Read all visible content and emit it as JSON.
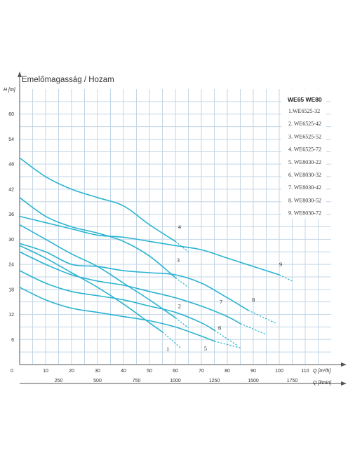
{
  "chart_data": {
    "type": "line",
    "title": "Emelőmagasság / Hozam",
    "ylabel": "H [m]",
    "xlabel": "Q [m³/h]",
    "x2label": "Q [l/min]",
    "xlim": [
      0,
      120
    ],
    "ylim": [
      0,
      66
    ],
    "x_ticks": [
      "0",
      "10",
      "20",
      "30",
      "40",
      "50",
      "60",
      "70",
      "80",
      "90",
      "100",
      "110"
    ],
    "y_ticks": [
      "6",
      "12",
      "18",
      "24",
      "30",
      "36",
      "42",
      "48",
      "54",
      "60"
    ],
    "x2_ticks": [
      {
        "value": 250,
        "label": "250"
      },
      {
        "value": 500,
        "label": "500"
      },
      {
        "value": 750,
        "label": "750"
      },
      {
        "value": 1000,
        "label": "1000"
      },
      {
        "value": 1250,
        "label": "1250"
      },
      {
        "value": 1500,
        "label": "1500"
      },
      {
        "value": 1750,
        "label": "1750"
      }
    ],
    "grid": true,
    "legend_position": "top-right",
    "legend_title": "WE65 WE80",
    "series": [
      {
        "name": "1.WE6525-32",
        "label": "1",
        "points": [
          [
            0,
            28.5
          ],
          [
            10,
            25.5
          ],
          [
            20,
            22
          ],
          [
            30,
            18.5
          ],
          [
            40,
            14.5
          ],
          [
            50,
            10
          ],
          [
            55,
            7.8
          ]
        ],
        "dashed": [
          [
            55,
            7.8
          ],
          [
            62,
            4
          ]
        ],
        "label_pos": [
          56.5,
          3.2
        ]
      },
      {
        "name": "2. WE6525-42",
        "label": "2",
        "points": [
          [
            0,
            33.5
          ],
          [
            10,
            30
          ],
          [
            20,
            26.5
          ],
          [
            30,
            23.5
          ],
          [
            40,
            19.5
          ],
          [
            50,
            15.5
          ],
          [
            60,
            11.2
          ]
        ],
        "dashed": [
          [
            60,
            11.2
          ],
          [
            65,
            8.8
          ]
        ],
        "label_pos": [
          61,
          13.5
        ]
      },
      {
        "name": "3. WE6525-52",
        "label": "3",
        "points": [
          [
            0,
            40
          ],
          [
            10,
            35.5
          ],
          [
            20,
            33
          ],
          [
            30,
            31.5
          ],
          [
            40,
            29.5
          ],
          [
            50,
            26
          ],
          [
            60,
            20.8
          ]
        ],
        "dashed": [
          [
            60,
            20.8
          ],
          [
            65,
            18.5
          ]
        ],
        "label_pos": [
          60.5,
          24.5
        ]
      },
      {
        "name": "4. WE6525-72",
        "label": "4",
        "points": [
          [
            0,
            49.5
          ],
          [
            10,
            45
          ],
          [
            20,
            42
          ],
          [
            30,
            40
          ],
          [
            40,
            38
          ],
          [
            50,
            33.5
          ],
          [
            60,
            29.5
          ]
        ],
        "dashed": [
          [
            60,
            29.5
          ],
          [
            65,
            27
          ]
        ],
        "label_pos": [
          61,
          32.5
        ]
      },
      {
        "name": "5. WE8030-22",
        "label": "5",
        "points": [
          [
            0,
            18.5
          ],
          [
            10,
            15.5
          ],
          [
            20,
            13.5
          ],
          [
            30,
            12.5
          ],
          [
            40,
            11.5
          ],
          [
            50,
            10.5
          ],
          [
            60,
            9
          ],
          [
            70,
            6.8
          ],
          [
            75,
            5.6
          ]
        ],
        "dashed": [
          [
            75,
            5.6
          ],
          [
            85,
            4
          ]
        ],
        "label_pos": [
          71,
          3.4
        ]
      },
      {
        "name": "6. WE8030-32",
        "label": "6",
        "points": [
          [
            0,
            22.5
          ],
          [
            10,
            19.5
          ],
          [
            20,
            17.5
          ],
          [
            30,
            16.5
          ],
          [
            40,
            15.5
          ],
          [
            50,
            14
          ],
          [
            60,
            12.5
          ],
          [
            70,
            10
          ],
          [
            75,
            8.2
          ]
        ],
        "dashed": [
          [
            75,
            8.2
          ],
          [
            84,
            4.5
          ]
        ],
        "label_pos": [
          76.5,
          8.3
        ]
      },
      {
        "name": "7. WE8030-42",
        "label": "7",
        "points": [
          [
            0,
            27
          ],
          [
            10,
            24
          ],
          [
            20,
            21.5
          ],
          [
            30,
            20
          ],
          [
            40,
            19
          ],
          [
            50,
            17.5
          ],
          [
            60,
            16
          ],
          [
            70,
            14
          ],
          [
            80,
            11.5
          ],
          [
            85,
            9.8
          ]
        ],
        "dashed": [
          [
            85,
            9.8
          ],
          [
            95,
            7.2
          ]
        ],
        "label_pos": [
          77,
          14.5
        ]
      },
      {
        "name": "8. WE8030-52",
        "label": "8",
        "points": [
          [
            0,
            29
          ],
          [
            10,
            27
          ],
          [
            20,
            24
          ],
          [
            30,
            23.5
          ],
          [
            40,
            22.5
          ],
          [
            50,
            22
          ],
          [
            60,
            21.5
          ],
          [
            70,
            19.5
          ],
          [
            80,
            16
          ],
          [
            88,
            13
          ]
        ],
        "dashed": [
          [
            88,
            13
          ],
          [
            99,
            9.8
          ]
        ],
        "label_pos": [
          89.5,
          15
        ]
      },
      {
        "name": "9. WE8030-72",
        "label": "9",
        "points": [
          [
            0,
            35.5
          ],
          [
            10,
            34
          ],
          [
            20,
            32.5
          ],
          [
            30,
            31
          ],
          [
            40,
            30.5
          ],
          [
            50,
            29.5
          ],
          [
            60,
            28.5
          ],
          [
            70,
            27.5
          ],
          [
            80,
            25.5
          ],
          [
            90,
            23.5
          ],
          [
            100,
            21.5
          ]
        ],
        "dashed": [
          [
            100,
            21.5
          ],
          [
            105,
            20
          ]
        ],
        "label_pos": [
          100,
          23.5
        ]
      }
    ]
  }
}
